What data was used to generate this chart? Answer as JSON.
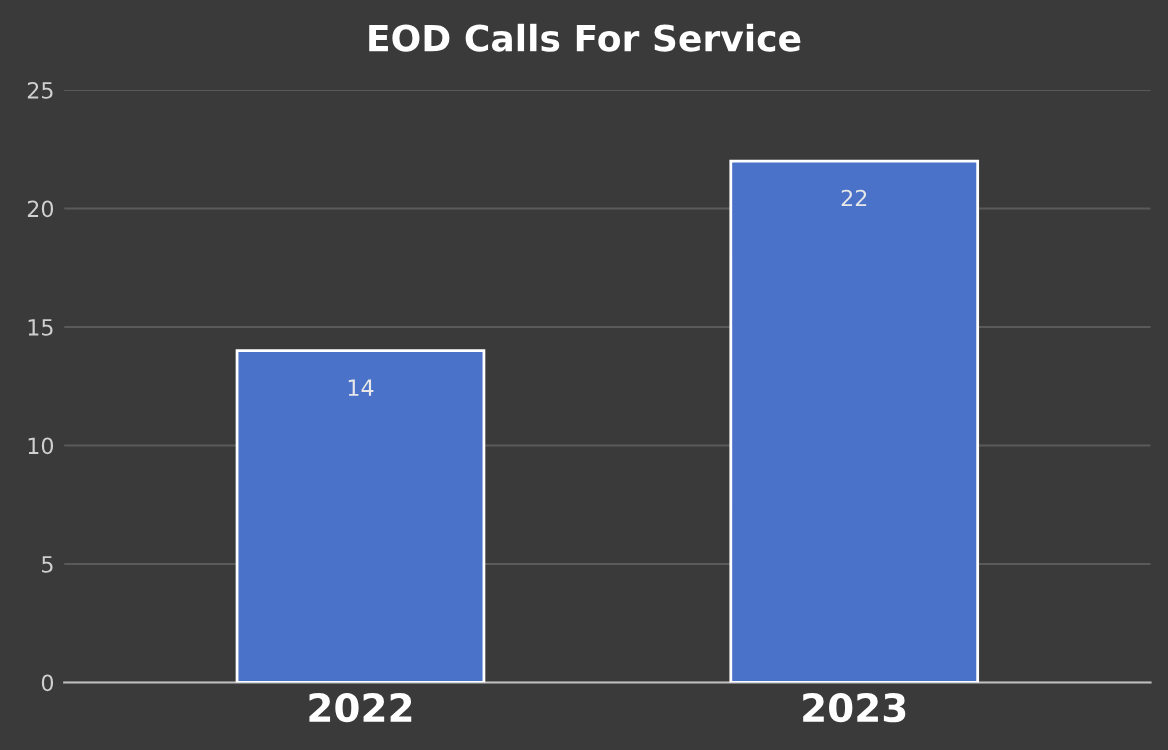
{
  "chart_data": {
    "type": "bar",
    "title": "EOD Calls For Service",
    "categories": [
      "2022",
      "2023"
    ],
    "values": [
      14,
      22
    ],
    "color": "#4a72c8",
    "ylim": [
      0,
      25
    ],
    "yticks": [
      0,
      5,
      10,
      15,
      20,
      25
    ],
    "grid": "y",
    "data_labels": true
  }
}
